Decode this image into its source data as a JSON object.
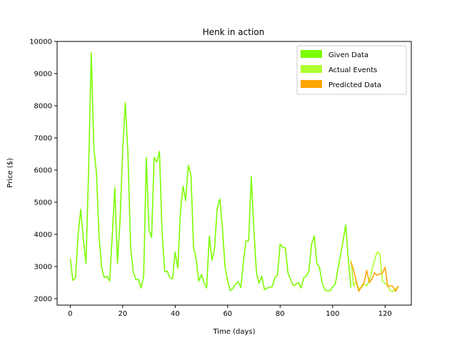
{
  "chart_data": {
    "type": "line",
    "title": "Henk in action",
    "xlabel": "Time (days)",
    "ylabel": "Price ($)",
    "xlim": [
      -5,
      130
    ],
    "ylim": [
      1800,
      10000
    ],
    "xticks": [
      0,
      20,
      40,
      60,
      80,
      100,
      120
    ],
    "yticks": [
      2000,
      3000,
      4000,
      5000,
      6000,
      7000,
      8000,
      9000,
      10000
    ],
    "grid": false,
    "legend_position": "top-right",
    "series": [
      {
        "name": "Given Data",
        "color": "#7cfc00",
        "x": [
          0,
          1,
          2,
          3,
          4,
          5,
          6,
          7,
          8,
          9,
          10,
          11,
          12,
          13,
          14,
          15,
          16,
          17,
          18,
          19,
          20,
          21,
          22,
          23,
          24,
          25,
          26,
          27,
          28,
          29,
          30,
          31,
          32,
          33,
          34,
          35,
          36,
          37,
          38,
          39,
          40,
          41,
          42,
          43,
          44,
          45,
          46,
          47,
          48,
          49,
          50,
          51,
          52,
          53,
          54,
          55,
          56,
          57,
          58,
          59,
          60,
          61,
          62,
          63,
          64,
          65,
          66,
          67,
          68,
          69,
          70,
          71,
          72,
          73,
          74,
          75,
          76,
          77,
          78,
          79,
          80,
          81,
          82,
          83,
          84,
          85,
          86,
          87,
          88,
          89,
          90,
          91,
          92,
          93,
          94,
          95,
          96,
          97,
          98,
          99,
          100,
          101,
          102,
          103,
          104,
          105,
          106,
          107
        ],
        "y": [
          3250,
          2570,
          2650,
          4000,
          4780,
          3850,
          3100,
          6000,
          9650,
          6700,
          5900,
          3900,
          2950,
          2650,
          2700,
          2550,
          3950,
          5450,
          3100,
          4480,
          6650,
          8100,
          6500,
          3600,
          2850,
          2600,
          2600,
          2330,
          2700,
          6400,
          4150,
          3900,
          6400,
          6250,
          6580,
          4050,
          2850,
          2850,
          2650,
          2620,
          3450,
          2950,
          4700,
          5500,
          5050,
          6150,
          5850,
          3600,
          3250,
          2550,
          2750,
          2500,
          2330,
          3950,
          3200,
          3550,
          4800,
          5100,
          4200,
          3000,
          2550,
          2250,
          2330,
          2450,
          2530,
          2350,
          3150,
          3800,
          3800,
          5800,
          4100,
          2800,
          2480,
          2700,
          2280,
          2330,
          2350,
          2380,
          2650,
          2730,
          3700,
          3600,
          3580,
          2800,
          2600,
          2400,
          2450,
          2500,
          2330,
          2650,
          2700,
          2870,
          3700,
          3950,
          3100,
          2970,
          2500,
          2280,
          2250,
          2250,
          2370,
          2450,
          2900,
          3350,
          3800,
          4300,
          3220,
          2350
        ]
      },
      {
        "name": "Actual Events",
        "color": "#adff2f",
        "x": [
          107,
          108,
          109,
          110,
          111,
          112,
          113,
          114,
          115,
          116,
          117,
          118,
          119,
          120,
          121,
          122,
          123,
          124,
          125
        ],
        "y": [
          3200,
          2380,
          2550,
          2300,
          2350,
          2450,
          2400,
          2550,
          2900,
          3200,
          3450,
          3400,
          2550,
          2480,
          2400,
          2250,
          2230,
          2300,
          2380
        ]
      },
      {
        "name": "Predicted Data",
        "color": "#ffa500",
        "x": [
          107,
          108,
          109,
          110,
          111,
          112,
          113,
          114,
          115,
          116,
          117,
          118,
          119,
          120,
          121,
          122,
          123,
          124,
          125
        ],
        "y": [
          3150,
          2880,
          2550,
          2230,
          2380,
          2500,
          2880,
          2500,
          2620,
          2800,
          2730,
          2770,
          2800,
          2980,
          2380,
          2400,
          2380,
          2230,
          2400
        ]
      }
    ]
  }
}
